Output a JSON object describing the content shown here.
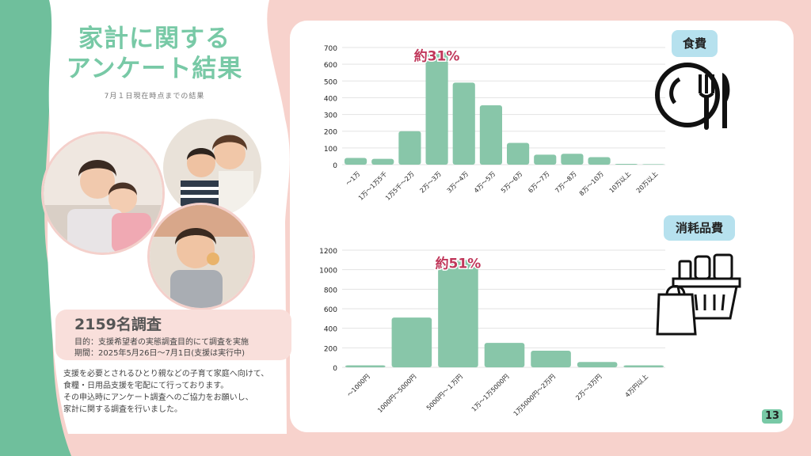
{
  "header": {
    "title_line1": "家計に関する",
    "title_line2": "アンケート結果",
    "subtitle": "7月１日現在時点までの結果"
  },
  "survey": {
    "headline": "2159名調査",
    "purpose": "目的：支援希望者の実態調査目的にて調査を実施",
    "period": "期間：2025年5月26日〜7月1日(支援は実行中)"
  },
  "description": [
    "支援を必要とされるひとり親などの子育て家庭へ向けて、",
    "食糧・日用品支援を宅配にて行っております。",
    "その申込時にアンケート調査へのご協力をお願いし、",
    "家計に関する調査を行いました。"
  ],
  "page_number": "13",
  "colors": {
    "bar": "#88c6a9",
    "accent_green": "#78c9a6",
    "tag_bg": "#b6e1ee",
    "pink_bg": "#f7d2cc",
    "callout": "#c0375a"
  },
  "chart_data": [
    {
      "type": "bar",
      "tag": "食費",
      "icon": "plate-fork-knife-icon",
      "callout": "約31%",
      "callout_category": "2万〜3万",
      "categories": [
        "〜1万",
        "1万〜1万5千",
        "1万5千〜2万",
        "2万〜3万",
        "3万〜4万",
        "4万〜5万",
        "5万〜6万",
        "6万〜7万",
        "7万〜8万",
        "8万〜10万",
        "10万以上",
        "20万以上"
      ],
      "values": [
        40,
        35,
        200,
        670,
        490,
        355,
        130,
        60,
        65,
        45,
        5,
        3
      ],
      "ylim": [
        0,
        700
      ],
      "yticks": [
        0,
        100,
        200,
        300,
        400,
        500,
        600,
        700
      ],
      "grid": true
    },
    {
      "type": "bar",
      "tag": "消耗品費",
      "icon": "shopping-basket-icon",
      "callout": "約51%",
      "callout_category": "5000円〜１万円",
      "categories": [
        "〜1000円",
        "1000円〜5000円",
        "5000円〜１万円",
        "1万〜1万5000円",
        "1万5000円〜2万円",
        "2万〜3万円",
        "4万円以上"
      ],
      "values": [
        20,
        510,
        1100,
        250,
        170,
        55,
        20
      ],
      "ylim": [
        0,
        1200
      ],
      "yticks": [
        0,
        200,
        400,
        600,
        800,
        1000,
        1200
      ],
      "grid": true
    }
  ]
}
